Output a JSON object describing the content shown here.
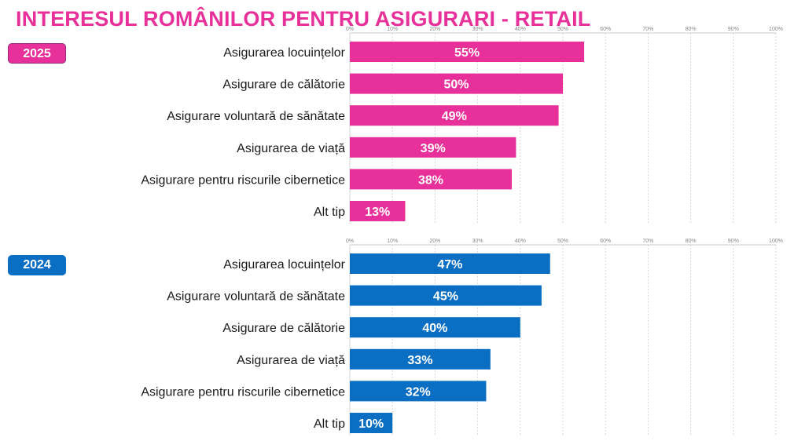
{
  "title": "INTERESUL ROMÂNILOR PENTRU ASIGURARI - RETAIL",
  "colors": {
    "accent_2025": "#e8309a",
    "accent_2024": "#0a6fc2",
    "title": "#e8309a"
  },
  "chart_data": [
    {
      "type": "bar",
      "orientation": "horizontal",
      "badge": "2025",
      "categories": [
        "Asigurarea locuințelor",
        "Asigurare de călătorie",
        "Asigurare voluntară de sănătate",
        "Asigurarea de viață",
        "Asigurare pentru riscurile cibernetice",
        "Alt tip"
      ],
      "values": [
        55,
        50,
        49,
        39,
        38,
        13
      ],
      "value_labels": [
        "55%",
        "50%",
        "49%",
        "39%",
        "38%",
        "13%"
      ],
      "xlim": [
        0,
        100
      ],
      "x_ticks": [
        "0%",
        "10%",
        "20%",
        "30%",
        "40%",
        "50%",
        "60%",
        "70%",
        "80%",
        "90%",
        "100%"
      ],
      "grid": true,
      "color": "#e8309a"
    },
    {
      "type": "bar",
      "orientation": "horizontal",
      "badge": "2024",
      "categories": [
        "Asigurarea locuințelor",
        "Asigurare voluntară de sănătate",
        "Asigurare de călătorie",
        "Asigurarea de viață",
        "Asigurare pentru riscurile cibernetice",
        "Alt tip"
      ],
      "values": [
        47,
        45,
        40,
        33,
        32,
        10
      ],
      "value_labels": [
        "47%",
        "45%",
        "40%",
        "33%",
        "32%",
        "10%"
      ],
      "xlim": [
        0,
        100
      ],
      "x_ticks": [
        "0%",
        "10%",
        "20%",
        "30%",
        "40%",
        "50%",
        "60%",
        "70%",
        "80%",
        "90%",
        "100%"
      ],
      "grid": true,
      "color": "#0a6fc2"
    }
  ]
}
